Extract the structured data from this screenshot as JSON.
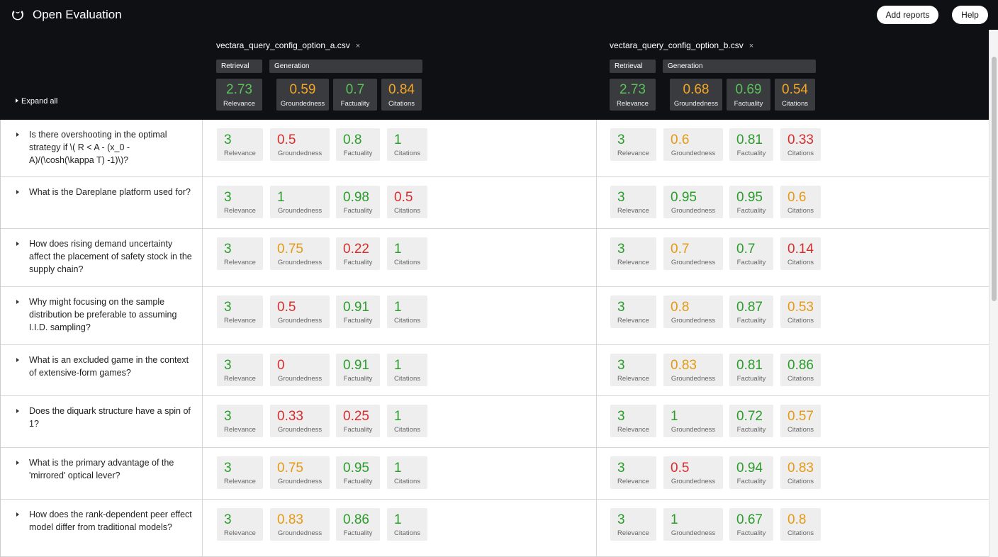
{
  "app": {
    "title": "Open Evaluation",
    "logo_icon": "moon-logo-icon"
  },
  "toolbar": {
    "add_reports": "Add reports",
    "help": "Help"
  },
  "expand_all": "Expand all",
  "colors": {
    "good": "#2a9d2a",
    "medium": "#e59a12",
    "bad": "#d92d2d",
    "summary_good": "#5bc25b",
    "summary_medium": "#f5a623"
  },
  "groups": {
    "retrieval": "Retrieval",
    "generation": "Generation"
  },
  "metric_labels": [
    "Relevance",
    "Groundedness",
    "Factuality",
    "Citations"
  ],
  "reports": [
    {
      "name": "vectara_query_config_option_a.csv",
      "close": "×",
      "summary": [
        {
          "value": "2.73",
          "status": "good"
        },
        {
          "value": "0.59",
          "status": "medium"
        },
        {
          "value": "0.7",
          "status": "good"
        },
        {
          "value": "0.84",
          "status": "medium"
        }
      ]
    },
    {
      "name": "vectara_query_config_option_b.csv",
      "close": "×",
      "summary": [
        {
          "value": "2.73",
          "status": "good"
        },
        {
          "value": "0.68",
          "status": "medium"
        },
        {
          "value": "0.69",
          "status": "good"
        },
        {
          "value": "0.54",
          "status": "medium"
        }
      ]
    }
  ],
  "rows": [
    {
      "question": "Is there overshooting in the optimal strategy if \\( R < A - (x_0 - A)/(\\cosh(\\kappa T) -1)\\)?",
      "a": [
        {
          "value": "3",
          "status": "good"
        },
        {
          "value": "0.5",
          "status": "bad"
        },
        {
          "value": "0.8",
          "status": "good"
        },
        {
          "value": "1",
          "status": "good"
        }
      ],
      "b": [
        {
          "value": "3",
          "status": "good"
        },
        {
          "value": "0.6",
          "status": "medium"
        },
        {
          "value": "0.81",
          "status": "good"
        },
        {
          "value": "0.33",
          "status": "bad"
        }
      ]
    },
    {
      "question": "What is the Dareplane platform used for?",
      "a": [
        {
          "value": "3",
          "status": "good"
        },
        {
          "value": "1",
          "status": "good"
        },
        {
          "value": "0.98",
          "status": "good"
        },
        {
          "value": "0.5",
          "status": "bad"
        }
      ],
      "b": [
        {
          "value": "3",
          "status": "good"
        },
        {
          "value": "0.95",
          "status": "good"
        },
        {
          "value": "0.95",
          "status": "good"
        },
        {
          "value": "0.6",
          "status": "medium"
        }
      ]
    },
    {
      "question": "How does rising demand uncertainty affect the placement of safety stock in the supply chain?",
      "a": [
        {
          "value": "3",
          "status": "good"
        },
        {
          "value": "0.75",
          "status": "medium"
        },
        {
          "value": "0.22",
          "status": "bad"
        },
        {
          "value": "1",
          "status": "good"
        }
      ],
      "b": [
        {
          "value": "3",
          "status": "good"
        },
        {
          "value": "0.7",
          "status": "medium"
        },
        {
          "value": "0.7",
          "status": "good"
        },
        {
          "value": "0.14",
          "status": "bad"
        }
      ]
    },
    {
      "question": "Why might focusing on the sample distribution be preferable to assuming I.I.D. sampling?",
      "a": [
        {
          "value": "3",
          "status": "good"
        },
        {
          "value": "0.5",
          "status": "bad"
        },
        {
          "value": "0.91",
          "status": "good"
        },
        {
          "value": "1",
          "status": "good"
        }
      ],
      "b": [
        {
          "value": "3",
          "status": "good"
        },
        {
          "value": "0.8",
          "status": "medium"
        },
        {
          "value": "0.87",
          "status": "good"
        },
        {
          "value": "0.53",
          "status": "medium"
        }
      ]
    },
    {
      "question": "What is an excluded game in the context of extensive-form games?",
      "a": [
        {
          "value": "3",
          "status": "good"
        },
        {
          "value": "0",
          "status": "bad"
        },
        {
          "value": "0.91",
          "status": "good"
        },
        {
          "value": "1",
          "status": "good"
        }
      ],
      "b": [
        {
          "value": "3",
          "status": "good"
        },
        {
          "value": "0.83",
          "status": "medium"
        },
        {
          "value": "0.81",
          "status": "good"
        },
        {
          "value": "0.86",
          "status": "good"
        }
      ]
    },
    {
      "question": "Does the diquark structure have a spin of 1?",
      "a": [
        {
          "value": "3",
          "status": "good"
        },
        {
          "value": "0.33",
          "status": "bad"
        },
        {
          "value": "0.25",
          "status": "bad"
        },
        {
          "value": "1",
          "status": "good"
        }
      ],
      "b": [
        {
          "value": "3",
          "status": "good"
        },
        {
          "value": "1",
          "status": "good"
        },
        {
          "value": "0.72",
          "status": "good"
        },
        {
          "value": "0.57",
          "status": "medium"
        }
      ]
    },
    {
      "question": "What is the primary advantage of the 'mirrored' optical lever?",
      "a": [
        {
          "value": "3",
          "status": "good"
        },
        {
          "value": "0.75",
          "status": "medium"
        },
        {
          "value": "0.95",
          "status": "good"
        },
        {
          "value": "1",
          "status": "good"
        }
      ],
      "b": [
        {
          "value": "3",
          "status": "good"
        },
        {
          "value": "0.5",
          "status": "bad"
        },
        {
          "value": "0.94",
          "status": "good"
        },
        {
          "value": "0.83",
          "status": "medium"
        }
      ]
    },
    {
      "question": "How does the rank-dependent peer effect model differ from traditional models?",
      "a": [
        {
          "value": "3",
          "status": "good"
        },
        {
          "value": "0.83",
          "status": "medium"
        },
        {
          "value": "0.86",
          "status": "good"
        },
        {
          "value": "1",
          "status": "good"
        }
      ],
      "b": [
        {
          "value": "3",
          "status": "good"
        },
        {
          "value": "1",
          "status": "good"
        },
        {
          "value": "0.67",
          "status": "good"
        },
        {
          "value": "0.8",
          "status": "medium"
        }
      ]
    }
  ]
}
